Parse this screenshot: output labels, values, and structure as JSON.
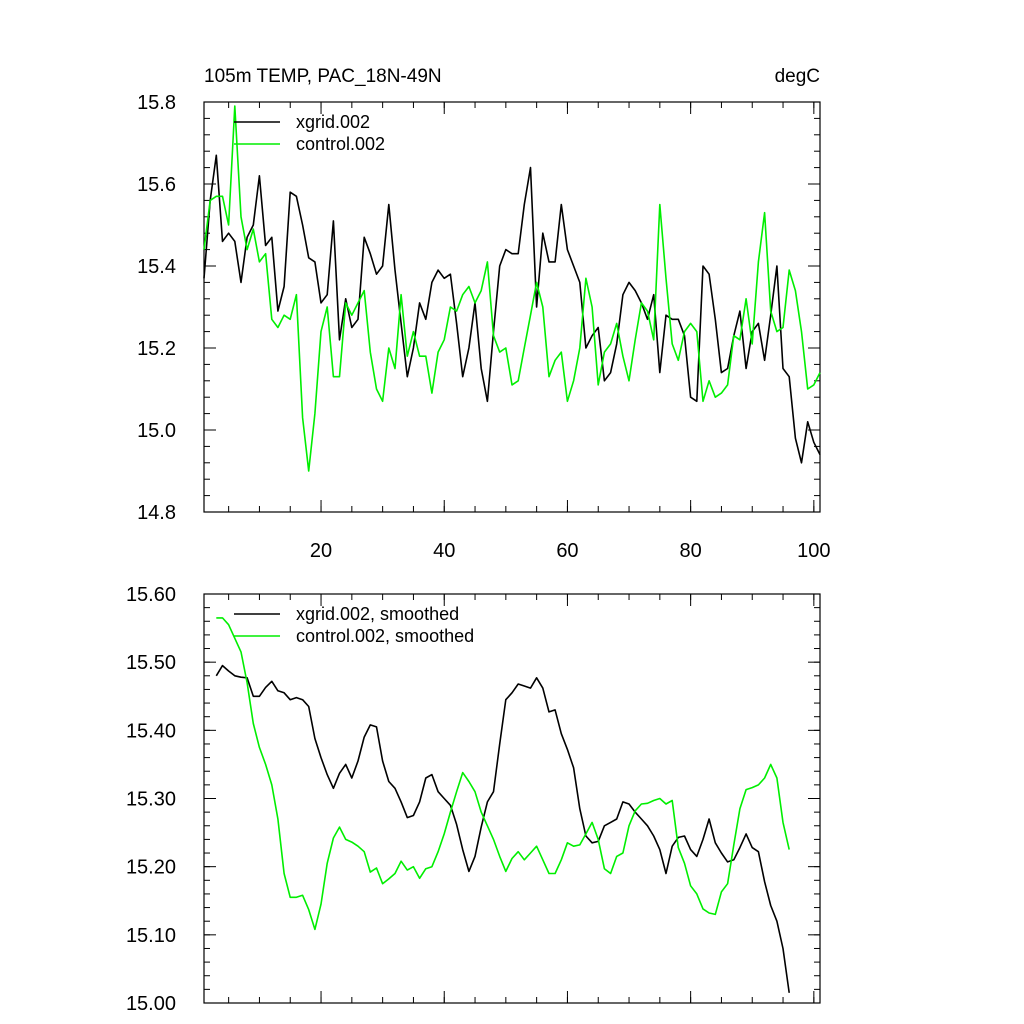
{
  "colors": {
    "xgrid": "#000000",
    "control": "#00ee00"
  },
  "chart_data": [
    {
      "type": "line",
      "title": "105m TEMP, PAC_18N-49N",
      "units": "degC",
      "xlim": [
        1,
        101
      ],
      "ylim": [
        14.8,
        15.8
      ],
      "xticks": [
        20,
        40,
        60,
        80,
        100
      ],
      "yticks": [
        14.8,
        15.0,
        15.2,
        15.4,
        15.6,
        15.8
      ],
      "ytick_labels": [
        "14.8",
        "15.0",
        "15.2",
        "15.4",
        "15.6",
        "15.8"
      ],
      "show_x_labels": true,
      "legend": "top-left",
      "x_start": 1,
      "series": [
        {
          "name": "xgrid.002",
          "color": "#000000",
          "values": [
            15.37,
            15.56,
            15.67,
            15.46,
            15.48,
            15.46,
            15.36,
            15.47,
            15.5,
            15.62,
            15.45,
            15.47,
            15.29,
            15.35,
            15.58,
            15.57,
            15.5,
            15.42,
            15.41,
            15.31,
            15.33,
            15.51,
            15.22,
            15.32,
            15.25,
            15.27,
            15.47,
            15.43,
            15.38,
            15.4,
            15.55,
            15.39,
            15.26,
            15.13,
            15.2,
            15.31,
            15.27,
            15.36,
            15.39,
            15.37,
            15.38,
            15.26,
            15.13,
            15.2,
            15.31,
            15.15,
            15.07,
            15.24,
            15.4,
            15.44,
            15.43,
            15.43,
            15.55,
            15.64,
            15.3,
            15.48,
            15.41,
            15.41,
            15.55,
            15.44,
            15.4,
            15.36,
            15.2,
            15.23,
            15.25,
            15.12,
            15.14,
            15.21,
            15.33,
            15.36,
            15.34,
            15.31,
            15.27,
            15.33,
            15.14,
            15.28,
            15.27,
            15.27,
            15.23,
            15.08,
            15.07,
            15.4,
            15.38,
            15.27,
            15.14,
            15.15,
            15.23,
            15.29,
            15.15,
            15.24,
            15.26,
            15.17,
            15.28,
            15.4,
            15.15,
            15.13,
            14.98,
            14.92,
            15.02,
            14.97,
            14.94
          ]
        },
        {
          "name": "control.002",
          "color": "#00ee00",
          "values": [
            15.44,
            15.56,
            15.57,
            15.57,
            15.5,
            15.79,
            15.52,
            15.44,
            15.49,
            15.41,
            15.43,
            15.27,
            15.25,
            15.28,
            15.27,
            15.33,
            15.03,
            14.9,
            15.04,
            15.24,
            15.3,
            15.13,
            15.13,
            15.31,
            15.28,
            15.31,
            15.34,
            15.19,
            15.1,
            15.07,
            15.2,
            15.15,
            15.33,
            15.18,
            15.24,
            15.18,
            15.18,
            15.09,
            15.19,
            15.22,
            15.3,
            15.29,
            15.33,
            15.35,
            15.31,
            15.34,
            15.41,
            15.23,
            15.19,
            15.2,
            15.11,
            15.12,
            15.2,
            15.28,
            15.36,
            15.3,
            15.13,
            15.17,
            15.19,
            15.07,
            15.12,
            15.2,
            15.37,
            15.3,
            15.11,
            15.19,
            15.21,
            15.26,
            15.18,
            15.12,
            15.22,
            15.31,
            15.29,
            15.22,
            15.55,
            15.37,
            15.21,
            15.17,
            15.24,
            15.26,
            15.24,
            15.07,
            15.12,
            15.08,
            15.09,
            15.11,
            15.23,
            15.22,
            15.32,
            15.21,
            15.41,
            15.53,
            15.29,
            15.24,
            15.25,
            15.39,
            15.34,
            15.24,
            15.1,
            15.11,
            15.14
          ]
        }
      ]
    },
    {
      "type": "line",
      "title": "",
      "units": "",
      "xlim": [
        1,
        101
      ],
      "ylim": [
        15.0,
        15.6
      ],
      "xticks": [
        20,
        40,
        60,
        80,
        100
      ],
      "yticks": [
        15.0,
        15.1,
        15.2,
        15.3,
        15.4,
        15.5,
        15.6
      ],
      "ytick_labels": [
        "15.00",
        "15.10",
        "15.20",
        "15.30",
        "15.40",
        "15.50",
        "15.60"
      ],
      "show_x_labels": false,
      "legend": "top-left",
      "x_start": 3,
      "series": [
        {
          "name": "xgrid.002, smoothed",
          "color": "#000000",
          "values": [
            15.48,
            15.495,
            15.487,
            15.48,
            15.478,
            15.477,
            15.45,
            15.45,
            15.463,
            15.472,
            15.458,
            15.455,
            15.445,
            15.448,
            15.445,
            15.435,
            15.388,
            15.36,
            15.335,
            15.315,
            15.337,
            15.35,
            15.33,
            15.355,
            15.39,
            15.408,
            15.405,
            15.355,
            15.325,
            15.315,
            15.295,
            15.272,
            15.275,
            15.295,
            15.33,
            15.335,
            15.31,
            15.3,
            15.29,
            15.262,
            15.225,
            15.193,
            15.215,
            15.258,
            15.295,
            15.31,
            15.38,
            15.445,
            15.455,
            15.468,
            15.465,
            15.462,
            15.477,
            15.462,
            15.427,
            15.43,
            15.395,
            15.372,
            15.345,
            15.285,
            15.245,
            15.235,
            15.237,
            15.26,
            15.265,
            15.27,
            15.295,
            15.292,
            15.28,
            15.27,
            15.26,
            15.245,
            15.225,
            15.19,
            15.23,
            15.243,
            15.245,
            15.225,
            15.215,
            15.24,
            15.27,
            15.235,
            15.22,
            15.207,
            15.21,
            15.228,
            15.248,
            15.228,
            15.222,
            15.178,
            15.143,
            15.12,
            15.08,
            15.015
          ]
        },
        {
          "name": "control.002, smoothed",
          "color": "#00ee00",
          "values": [
            15.565,
            15.565,
            15.555,
            15.535,
            15.515,
            15.47,
            15.41,
            15.375,
            15.35,
            15.32,
            15.27,
            15.19,
            15.155,
            15.155,
            15.158,
            15.137,
            15.108,
            15.145,
            15.205,
            15.242,
            15.258,
            15.24,
            15.236,
            15.23,
            15.222,
            15.192,
            15.198,
            15.175,
            15.182,
            15.19,
            15.208,
            15.195,
            15.2,
            15.183,
            15.197,
            15.2,
            15.222,
            15.248,
            15.28,
            15.31,
            15.338,
            15.325,
            15.31,
            15.28,
            15.26,
            15.24,
            15.215,
            15.193,
            15.212,
            15.222,
            15.21,
            15.22,
            15.23,
            15.21,
            15.19,
            15.19,
            15.21,
            15.235,
            15.23,
            15.232,
            15.248,
            15.265,
            15.24,
            15.197,
            15.19,
            15.215,
            15.22,
            15.26,
            15.282,
            15.292,
            15.293,
            15.297,
            15.3,
            15.292,
            15.297,
            15.228,
            15.205,
            15.172,
            15.16,
            15.138,
            15.132,
            15.13,
            15.163,
            15.175,
            15.232,
            15.285,
            15.313,
            15.316,
            15.32,
            15.33,
            15.35,
            15.33,
            15.265,
            15.225
          ]
        }
      ]
    }
  ]
}
